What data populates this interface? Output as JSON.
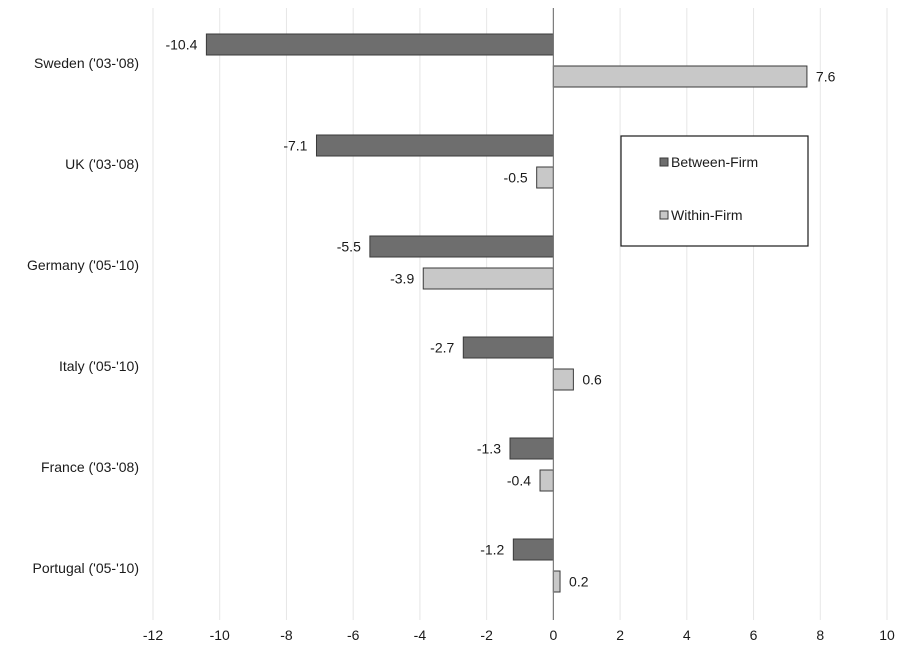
{
  "chart_data": {
    "type": "bar",
    "orientation": "horizontal",
    "categories": [
      "Sweden ('03-'08)",
      "UK ('03-'08)",
      "Germany ('05-'10)",
      "Italy ('05-'10)",
      "France ('03-'08)",
      "Portugal ('05-'10)"
    ],
    "series": [
      {
        "name": "Between-Firm",
        "color": "#6e6e6e",
        "values": [
          -10.4,
          -7.1,
          -5.5,
          -2.7,
          -1.3,
          -1.2
        ]
      },
      {
        "name": "Within-Firm",
        "color": "#c8c8c8",
        "values": [
          7.6,
          -0.5,
          -3.9,
          0.6,
          -0.4,
          0.2
        ]
      }
    ],
    "data_labels": [
      [
        "-10.4",
        "-7.1",
        "-5.5",
        "-2.7",
        "-1.3",
        "-1.2"
      ],
      [
        "7.6",
        "-0.5",
        "-3.9",
        "0.6",
        "-0.4",
        "0.2"
      ]
    ],
    "x_ticks": [
      -12,
      -10,
      -8,
      -6,
      -4,
      -2,
      0,
      2,
      4,
      6,
      8,
      10
    ],
    "xlim": [
      -12,
      10
    ],
    "grid": true,
    "legend_position": "top-right"
  }
}
